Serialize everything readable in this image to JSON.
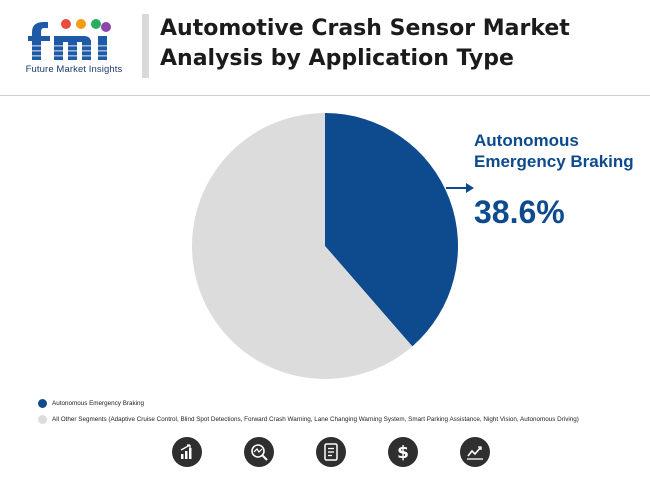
{
  "header": {
    "logo_text": "fmi",
    "logo_subtitle": "Future Market Insights",
    "title_line1": "Automotive Crash Sensor Market",
    "title_line2": "Analysis by Application Type"
  },
  "colors": {
    "primary": "#0d4a8e",
    "secondary": "#dcdcdc",
    "title": "#1b1b1b",
    "icon_bg": "#2f2f2f"
  },
  "chart_data": {
    "type": "pie",
    "slices": [
      {
        "label": "Autonomous Emergency Braking",
        "value": 38.6,
        "color": "#0d4a8e"
      },
      {
        "label": "All Other Segments (Adaptive Cruise Control, Blind Spot Detections, Forward Crash Warning, Lane Changing Warning System, Smart Parking Assistance, Night Vision, Autonomous Driving)",
        "value": 61.4,
        "color": "#dcdcdc"
      }
    ],
    "callout": {
      "label": "Autonomous Emergency Braking",
      "value_text": "38.6%"
    },
    "legend_position": "bottom-left"
  },
  "footer": {
    "icons": [
      "bar-chart-icon",
      "magnifier-trend-icon",
      "document-icon",
      "dollar-icon",
      "line-chart-icon"
    ]
  }
}
